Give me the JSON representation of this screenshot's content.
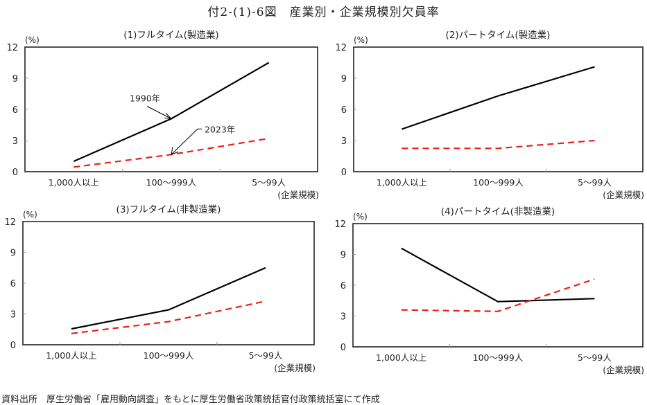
{
  "title": "付2-(1)-6図　産業別・企業規模別欠員率",
  "source": "資料出所　厚生労働省「雇用動向調査」をもとに厚生労働省政策統括官付政策統括室にて作成",
  "colors": {
    "series_1990": "#000000",
    "series_2023": "#e8201a",
    "frame": "#222222"
  },
  "chart_data": [
    {
      "type": "line",
      "title": "(1)フルタイム(製造業)",
      "ylabel": "(%)",
      "xlabel": "(企業規模)",
      "categories": [
        "1,000人以上",
        "100〜999人",
        "5〜99人"
      ],
      "ylim": [
        0,
        12
      ],
      "yticks": [
        0,
        3,
        6,
        9,
        12
      ],
      "grid": false,
      "series": [
        {
          "name": "1990年",
          "style": "solid",
          "values": [
            1.0,
            5.1,
            10.5
          ]
        },
        {
          "name": "2023年",
          "style": "dashed",
          "values": [
            0.45,
            1.65,
            3.2
          ]
        }
      ],
      "annotations": [
        "1990年",
        "2023年"
      ]
    },
    {
      "type": "line",
      "title": "(2)パートタイム(製造業)",
      "ylabel": "(%)",
      "xlabel": "(企業規模)",
      "categories": [
        "1,000人以上",
        "100〜999人",
        "5〜99人"
      ],
      "ylim": [
        0,
        12
      ],
      "yticks": [
        0,
        3,
        6,
        9,
        12
      ],
      "grid": false,
      "series": [
        {
          "name": "1990年",
          "style": "solid",
          "values": [
            4.1,
            7.3,
            10.1
          ]
        },
        {
          "name": "2023年",
          "style": "dashed",
          "values": [
            2.25,
            2.25,
            3.0
          ]
        }
      ]
    },
    {
      "type": "line",
      "title": "(3)フルタイム(非製造業)",
      "ylabel": "(%)",
      "xlabel": "(企業規模)",
      "categories": [
        "1,000人以上",
        "100〜999人",
        "5〜99人"
      ],
      "ylim": [
        0,
        12
      ],
      "yticks": [
        0,
        3,
        6,
        9,
        12
      ],
      "grid": false,
      "series": [
        {
          "name": "1990年",
          "style": "solid",
          "values": [
            1.55,
            3.4,
            7.5
          ]
        },
        {
          "name": "2023年",
          "style": "dashed",
          "values": [
            1.1,
            2.25,
            4.25
          ]
        }
      ]
    },
    {
      "type": "line",
      "title": "(4)パートタイム(非製造業)",
      "ylabel": "(%)",
      "xlabel": "(企業規模)",
      "categories": [
        "1,000人以上",
        "100〜999人",
        "5〜99人"
      ],
      "ylim": [
        0,
        12
      ],
      "yticks": [
        0,
        3,
        6,
        9,
        12
      ],
      "grid": false,
      "series": [
        {
          "name": "1990年",
          "style": "solid",
          "values": [
            9.6,
            4.4,
            4.7
          ]
        },
        {
          "name": "2023年",
          "style": "dashed",
          "values": [
            3.6,
            3.45,
            6.6
          ]
        }
      ]
    }
  ]
}
